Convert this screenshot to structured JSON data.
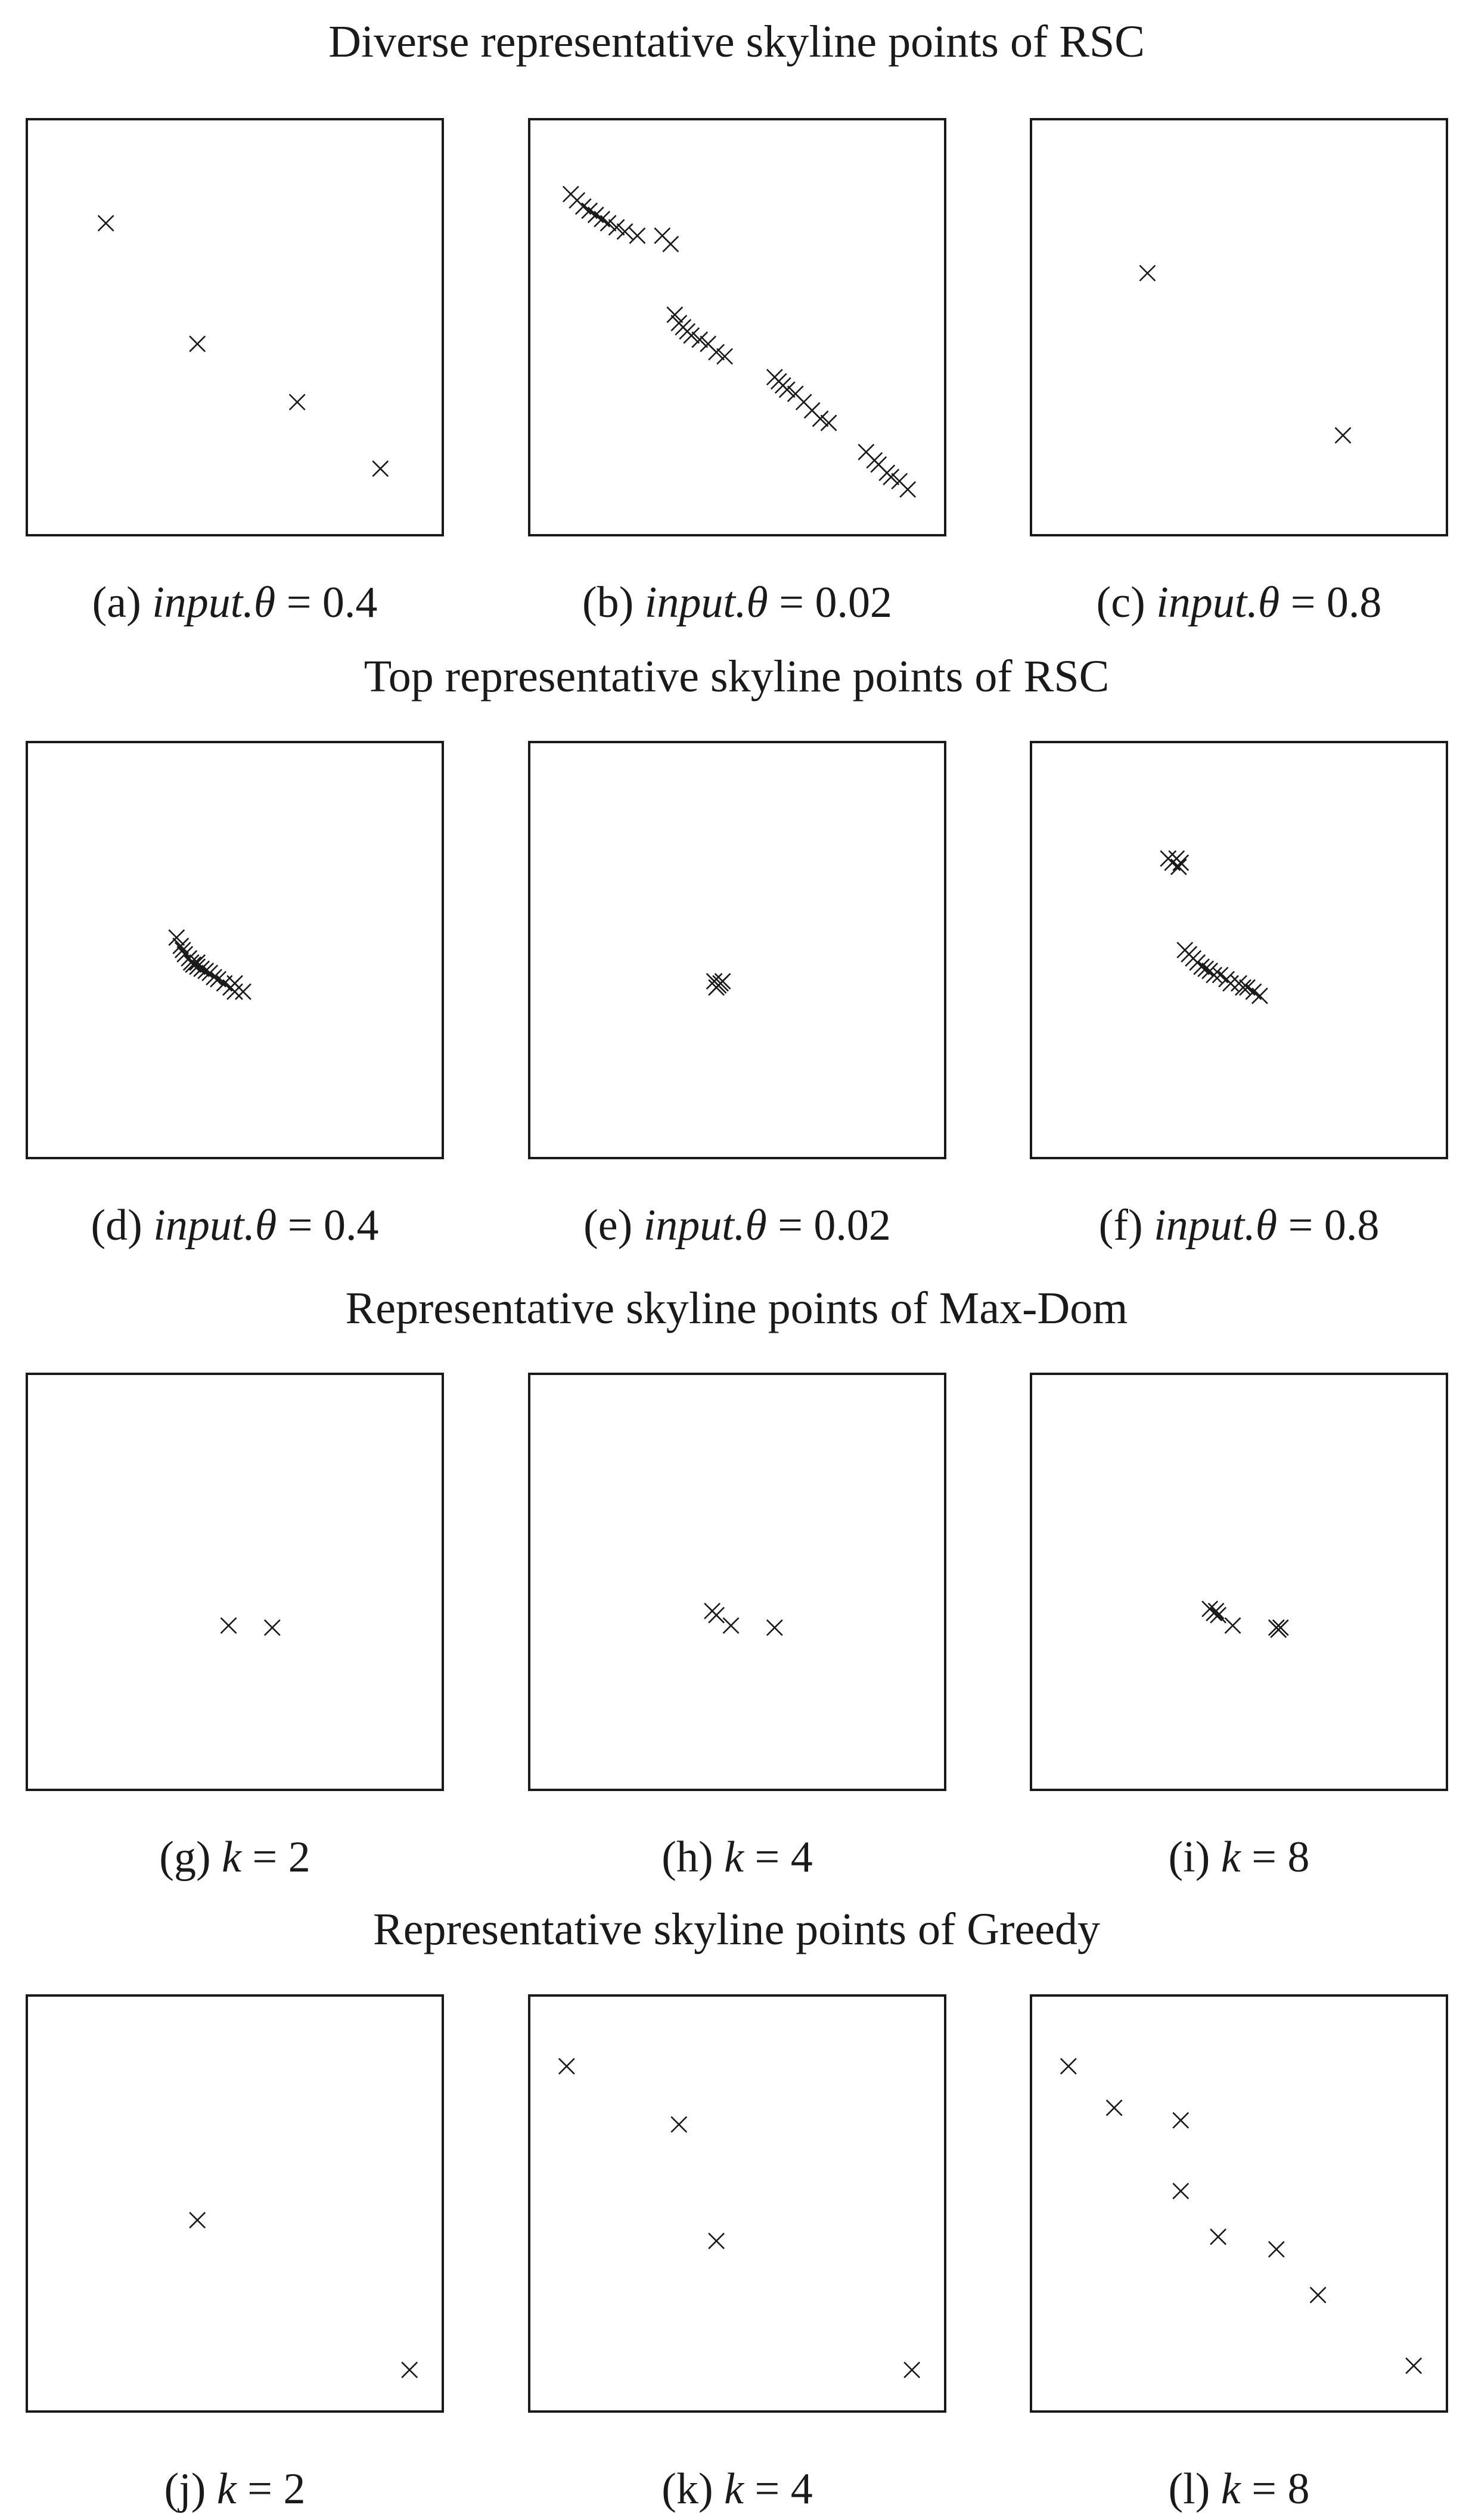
{
  "chart_data": [
    {
      "type": "scatter",
      "group_title": "Diverse representative skyline points of RSC",
      "label": "(a)",
      "param": "input.θ",
      "value": "0.4",
      "xlim": [
        0,
        1
      ],
      "ylim": [
        0,
        1
      ],
      "points": [
        [
          0.19,
          0.75
        ],
        [
          0.41,
          0.46
        ],
        [
          0.65,
          0.32
        ],
        [
          0.85,
          0.16
        ]
      ]
    },
    {
      "type": "scatter",
      "group_title": "Diverse representative skyline points of RSC",
      "label": "(b)",
      "param": "input.θ",
      "value": "0.02",
      "xlim": [
        0,
        1
      ],
      "ylim": [
        0,
        1
      ],
      "points": [
        [
          0.1,
          0.82
        ],
        [
          0.115,
          0.805
        ],
        [
          0.13,
          0.79
        ],
        [
          0.145,
          0.78
        ],
        [
          0.16,
          0.77
        ],
        [
          0.175,
          0.76
        ],
        [
          0.19,
          0.75
        ],
        [
          0.21,
          0.74
        ],
        [
          0.23,
          0.73
        ],
        [
          0.26,
          0.72
        ],
        [
          0.32,
          0.72
        ],
        [
          0.34,
          0.7
        ],
        [
          0.35,
          0.53
        ],
        [
          0.36,
          0.51
        ],
        [
          0.37,
          0.5
        ],
        [
          0.38,
          0.49
        ],
        [
          0.39,
          0.48
        ],
        [
          0.41,
          0.47
        ],
        [
          0.43,
          0.46
        ],
        [
          0.45,
          0.44
        ],
        [
          0.47,
          0.43
        ],
        [
          0.59,
          0.38
        ],
        [
          0.6,
          0.37
        ],
        [
          0.61,
          0.36
        ],
        [
          0.62,
          0.35
        ],
        [
          0.64,
          0.34
        ],
        [
          0.66,
          0.32
        ],
        [
          0.68,
          0.3
        ],
        [
          0.7,
          0.28
        ],
        [
          0.72,
          0.27
        ],
        [
          0.81,
          0.2
        ],
        [
          0.83,
          0.18
        ],
        [
          0.84,
          0.17
        ],
        [
          0.86,
          0.15
        ],
        [
          0.87,
          0.14
        ],
        [
          0.89,
          0.13
        ],
        [
          0.91,
          0.11
        ]
      ]
    },
    {
      "type": "scatter",
      "group_title": "Diverse representative skyline points of RSC",
      "label": "(c)",
      "param": "input.θ",
      "value": "0.8",
      "xlim": [
        0,
        1
      ],
      "ylim": [
        0,
        1
      ],
      "points": [
        [
          0.28,
          0.63
        ],
        [
          0.75,
          0.24
        ]
      ]
    },
    {
      "type": "scatter",
      "group_title": "Top representative skyline points of RSC",
      "label": "(d)",
      "param": "input.θ",
      "value": "0.4",
      "xlim": [
        0,
        1
      ],
      "ylim": [
        0,
        1
      ],
      "points": [
        [
          0.36,
          0.53
        ],
        [
          0.37,
          0.51
        ],
        [
          0.375,
          0.5
        ],
        [
          0.38,
          0.49
        ],
        [
          0.39,
          0.48
        ],
        [
          0.395,
          0.47
        ],
        [
          0.4,
          0.465
        ],
        [
          0.41,
          0.46
        ],
        [
          0.42,
          0.455
        ],
        [
          0.43,
          0.45
        ],
        [
          0.44,
          0.445
        ],
        [
          0.45,
          0.435
        ],
        [
          0.46,
          0.43
        ],
        [
          0.475,
          0.42
        ],
        [
          0.49,
          0.41
        ],
        [
          0.5,
          0.4
        ],
        [
          0.5,
          0.42
        ],
        [
          0.41,
          0.47
        ],
        [
          0.52,
          0.4
        ]
      ]
    },
    {
      "type": "scatter",
      "group_title": "Top representative skyline points of RSC",
      "label": "(e)",
      "param": "input.θ",
      "value": "0.02",
      "xlim": [
        0,
        1
      ],
      "ylim": [
        0,
        1
      ],
      "points": [
        [
          0.445,
          0.425
        ],
        [
          0.455,
          0.415
        ],
        [
          0.46,
          0.42
        ],
        [
          0.45,
          0.41
        ],
        [
          0.465,
          0.425
        ]
      ]
    },
    {
      "type": "scatter",
      "group_title": "Top representative skyline points of RSC",
      "label": "(f)",
      "param": "input.θ",
      "value": "0.8",
      "xlim": [
        0,
        1
      ],
      "ylim": [
        0,
        1
      ],
      "points": [
        [
          0.33,
          0.72
        ],
        [
          0.34,
          0.71
        ],
        [
          0.35,
          0.72
        ],
        [
          0.355,
          0.7
        ],
        [
          0.36,
          0.71
        ],
        [
          0.37,
          0.5
        ],
        [
          0.38,
          0.49
        ],
        [
          0.39,
          0.48
        ],
        [
          0.4,
          0.47
        ],
        [
          0.41,
          0.46
        ],
        [
          0.42,
          0.455
        ],
        [
          0.43,
          0.45
        ],
        [
          0.44,
          0.44
        ],
        [
          0.455,
          0.44
        ],
        [
          0.47,
          0.43
        ],
        [
          0.48,
          0.42
        ],
        [
          0.5,
          0.42
        ],
        [
          0.51,
          0.41
        ],
        [
          0.52,
          0.41
        ],
        [
          0.535,
          0.4
        ],
        [
          0.55,
          0.39
        ]
      ]
    },
    {
      "type": "scatter",
      "group_title": "Representative skyline points of Max-Dom",
      "label": "(g)",
      "param": "k",
      "value": "2",
      "xlim": [
        0,
        1
      ],
      "ylim": [
        0,
        1
      ],
      "points": [
        [
          0.485,
          0.395
        ],
        [
          0.59,
          0.39
        ]
      ]
    },
    {
      "type": "scatter",
      "group_title": "Representative skyline points of Max-Dom",
      "label": "(h)",
      "param": "k",
      "value": "4",
      "xlim": [
        0,
        1
      ],
      "ylim": [
        0,
        1
      ],
      "points": [
        [
          0.44,
          0.43
        ],
        [
          0.485,
          0.395
        ],
        [
          0.59,
          0.39
        ],
        [
          0.45,
          0.42
        ]
      ]
    },
    {
      "type": "scatter",
      "group_title": "Representative skyline points of Max-Dom",
      "label": "(i)",
      "param": "k",
      "value": "8",
      "xlim": [
        0,
        1
      ],
      "ylim": [
        0,
        1
      ],
      "points": [
        [
          0.43,
          0.435
        ],
        [
          0.44,
          0.425
        ],
        [
          0.445,
          0.43
        ],
        [
          0.45,
          0.42
        ],
        [
          0.485,
          0.395
        ],
        [
          0.59,
          0.39
        ],
        [
          0.595,
          0.385
        ],
        [
          0.6,
          0.39
        ]
      ]
    },
    {
      "type": "scatter",
      "group_title": "Representative skyline points of Greedy",
      "label": "(j)",
      "param": "k",
      "value": "2",
      "xlim": [
        0,
        1
      ],
      "ylim": [
        0,
        1
      ],
      "points": [
        [
          0.41,
          0.46
        ],
        [
          0.92,
          0.1
        ]
      ]
    },
    {
      "type": "scatter",
      "group_title": "Representative skyline points of Greedy",
      "label": "(k)",
      "param": "k",
      "value": "4",
      "xlim": [
        0,
        1
      ],
      "ylim": [
        0,
        1
      ],
      "points": [
        [
          0.09,
          0.83
        ],
        [
          0.36,
          0.69
        ],
        [
          0.45,
          0.41
        ],
        [
          0.92,
          0.1
        ]
      ]
    },
    {
      "type": "scatter",
      "group_title": "Representative skyline points of Greedy",
      "label": "(l)",
      "param": "k",
      "value": "8",
      "xlim": [
        0,
        1
      ],
      "ylim": [
        0,
        1
      ],
      "points": [
        [
          0.09,
          0.83
        ],
        [
          0.2,
          0.73
        ],
        [
          0.36,
          0.7
        ],
        [
          0.36,
          0.53
        ],
        [
          0.45,
          0.42
        ],
        [
          0.59,
          0.39
        ],
        [
          0.69,
          0.28
        ],
        [
          0.92,
          0.11
        ]
      ]
    }
  ]
}
